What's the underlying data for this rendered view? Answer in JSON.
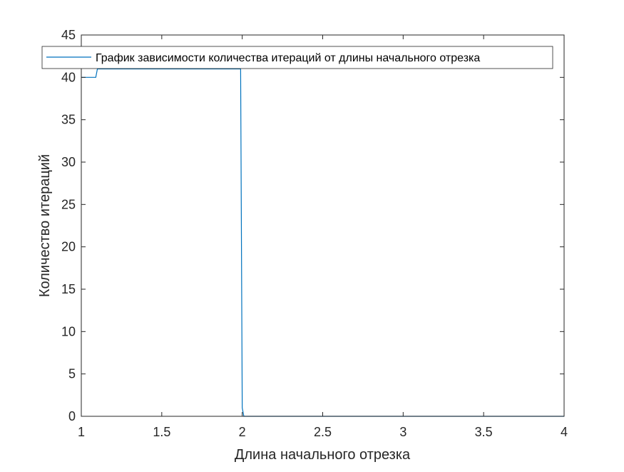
{
  "chart_data": {
    "type": "line",
    "title": "",
    "xlabel": "Длина начального отрезка",
    "ylabel": "Количество итераций",
    "xlim": [
      1,
      4
    ],
    "ylim": [
      0,
      45
    ],
    "xticks": [
      "1",
      "1.5",
      "2",
      "2.5",
      "3",
      "3.5",
      "4"
    ],
    "yticks": [
      "0",
      "5",
      "10",
      "15",
      "20",
      "25",
      "30",
      "35",
      "40",
      "45"
    ],
    "grid": false,
    "legend_position": "top",
    "series": [
      {
        "name": "График зависимости количества итераций от длины начального отрезка",
        "color": "#0072bd",
        "x": [
          1.0,
          1.09,
          1.1,
          1.99,
          2.0,
          2.01,
          4.0
        ],
        "y": [
          40,
          40,
          41,
          41,
          1,
          0,
          0
        ]
      }
    ]
  }
}
